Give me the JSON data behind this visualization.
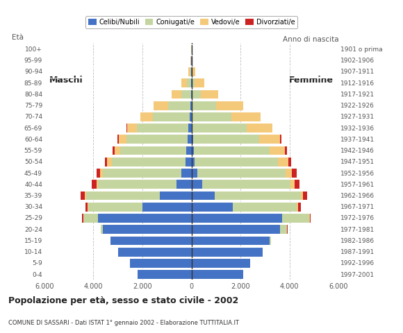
{
  "age_groups": [
    "0-4",
    "5-9",
    "10-14",
    "15-19",
    "20-24",
    "25-29",
    "30-34",
    "35-39",
    "40-44",
    "45-49",
    "50-54",
    "55-59",
    "60-64",
    "65-69",
    "70-74",
    "75-79",
    "80-84",
    "85-89",
    "90-94",
    "95-99",
    "100+"
  ],
  "birth_years": [
    "1997-2001",
    "1992-1996",
    "1987-1991",
    "1982-1986",
    "1977-1981",
    "1972-1976",
    "1967-1971",
    "1962-1966",
    "1957-1961",
    "1952-1956",
    "1947-1951",
    "1942-1946",
    "1937-1941",
    "1932-1936",
    "1927-1931",
    "1922-1926",
    "1917-1921",
    "1912-1916",
    "1907-1911",
    "1902-1906",
    "1901 o prima"
  ],
  "males": {
    "celibi": [
      2200,
      2500,
      3000,
      3300,
      3600,
      3800,
      2000,
      1300,
      600,
      400,
      250,
      200,
      150,
      120,
      70,
      40,
      15,
      8,
      3,
      1,
      0
    ],
    "coniugati": [
      0,
      0,
      0,
      10,
      100,
      600,
      2200,
      3000,
      3200,
      3200,
      3000,
      2700,
      2500,
      2100,
      1500,
      900,
      400,
      180,
      50,
      10,
      1
    ],
    "vedovi": [
      0,
      0,
      0,
      0,
      0,
      10,
      30,
      50,
      80,
      120,
      180,
      230,
      300,
      400,
      500,
      600,
      380,
      220,
      80,
      30,
      8
    ],
    "divorziati": [
      0,
      0,
      0,
      0,
      5,
      50,
      100,
      160,
      200,
      160,
      100,
      80,
      60,
      25,
      8,
      4,
      1,
      1,
      0,
      0,
      0
    ]
  },
  "females": {
    "nubili": [
      2100,
      2400,
      2900,
      3200,
      3600,
      3700,
      1700,
      950,
      450,
      250,
      130,
      90,
      60,
      40,
      20,
      10,
      4,
      2,
      1,
      0,
      0
    ],
    "coniugate": [
      0,
      0,
      0,
      50,
      300,
      1100,
      2600,
      3500,
      3600,
      3600,
      3400,
      3100,
      2700,
      2200,
      1600,
      1000,
      380,
      130,
      30,
      6,
      1
    ],
    "vedove": [
      0,
      0,
      0,
      0,
      5,
      20,
      60,
      90,
      150,
      250,
      420,
      620,
      850,
      1050,
      1200,
      1100,
      700,
      380,
      130,
      45,
      12
    ],
    "divorziate": [
      0,
      0,
      0,
      0,
      8,
      50,
      100,
      180,
      220,
      180,
      120,
      90,
      50,
      18,
      8,
      2,
      1,
      0,
      0,
      0,
      0
    ]
  },
  "color_celibi": "#4472c4",
  "color_coniugati": "#c5d5a0",
  "color_vedovi": "#f5c97a",
  "color_divorziati": "#cc2222",
  "title": "Popolazione per età, sesso e stato civile - 2002",
  "subtitle": "COMUNE DI SASSARI - Dati ISTAT 1° gennaio 2002 - Elaborazione TUTTITALIA.IT",
  "xlabel_left": "Maschi",
  "xlabel_right": "Femmine",
  "ylabel": "Età",
  "ylabel_right": "Anno di nascita",
  "xlim": 6000,
  "background_color": "#ffffff",
  "grid_color": "#bbbbbb"
}
